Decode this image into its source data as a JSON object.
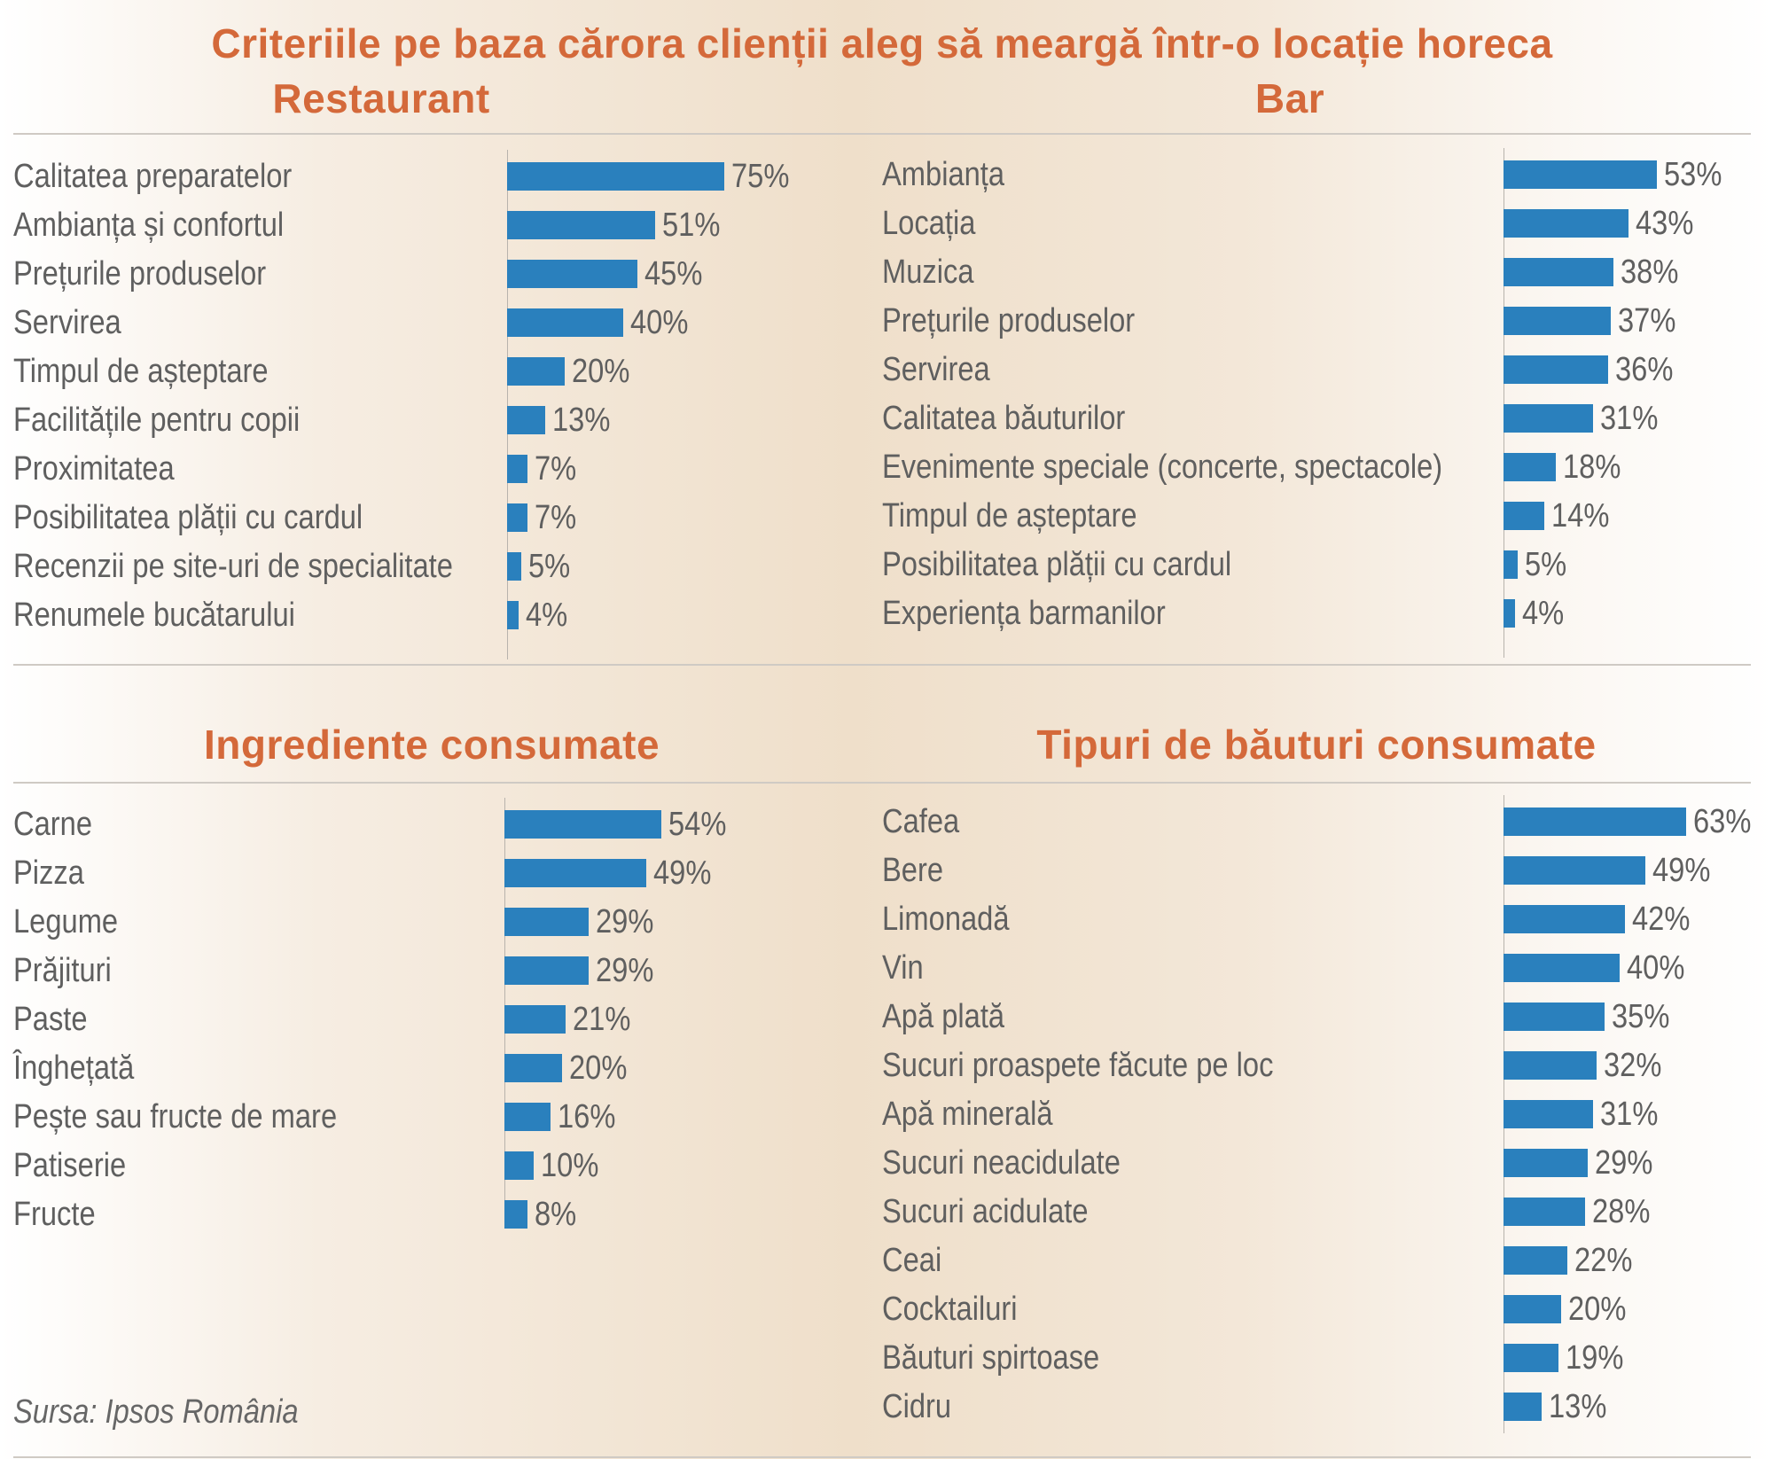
{
  "title": "Criteriile pe baza cărora clienții aleg să meargă într-o locație horeca",
  "source": "Sursa: Ipsos România",
  "chart_data": [
    {
      "type": "bar",
      "title": "Restaurant",
      "categories": [
        "Calitatea preparatelor",
        "Ambianța și confortul",
        "Prețurile produselor",
        "Servirea",
        "Timpul de așteptare",
        "Facilitățile pentru copii",
        "Proximitatea",
        "Posibilitatea plății cu cardul",
        "Recenzii pe site-uri de specialitate",
        "Renumele bucătarului"
      ],
      "values": [
        75,
        51,
        45,
        40,
        20,
        13,
        7,
        7,
        5,
        4
      ],
      "unit": "%"
    },
    {
      "type": "bar",
      "title": "Bar",
      "categories": [
        "Ambianța",
        "Locația",
        "Muzica",
        "Prețurile produselor",
        "Servirea",
        "Calitatea băuturilor",
        "Evenimente speciale (concerte, spectacole)",
        "Timpul de așteptare",
        "Posibilitatea plății cu cardul",
        "Experiența barmanilor"
      ],
      "values": [
        53,
        43,
        38,
        37,
        36,
        31,
        18,
        14,
        5,
        4
      ],
      "unit": "%"
    },
    {
      "type": "bar",
      "title": "Ingrediente consumate",
      "categories": [
        "Carne",
        "Pizza",
        "Legume",
        "Prăjituri",
        "Paste",
        "Înghețată",
        "Pește sau fructe de mare",
        "Patiserie",
        "Fructe"
      ],
      "values": [
        54,
        49,
        29,
        29,
        21,
        20,
        16,
        10,
        8
      ],
      "unit": "%"
    },
    {
      "type": "bar",
      "title": "Tipuri de băuturi consumate",
      "categories": [
        "Cafea",
        "Bere",
        "Limonadă",
        "Vin",
        "Apă plată",
        "Sucuri proaspete făcute pe loc",
        "Apă minerală",
        "Sucuri neacidulate",
        "Sucuri acidulate",
        "Ceai",
        "Cocktailuri",
        "Băuturi spirtoase",
        "Cidru"
      ],
      "values": [
        63,
        49,
        42,
        40,
        35,
        32,
        31,
        29,
        28,
        22,
        20,
        19,
        13
      ],
      "unit": "%"
    }
  ],
  "colors": {
    "title": "#d4693a",
    "bar": "#2a80bd",
    "text": "#5f5f5f"
  }
}
